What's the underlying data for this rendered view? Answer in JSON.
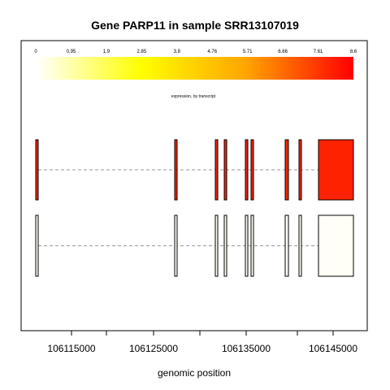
{
  "chart_data": {
    "type": "gene-structure",
    "title": "Gene PARP11 in sample SRR13107019",
    "xlabel": "genomic position",
    "xlim": [
      106111500,
      146700000
    ],
    "x_ticks": [
      106115000,
      106125000,
      106135000,
      106145000
    ],
    "x_tick_labels": [
      "106115000",
      "106125000",
      "106135000",
      "106145000"
    ],
    "legend": {
      "caption": "expression, by transcript",
      "min": 0,
      "max": 8.6,
      "tick_labels": [
        "0",
        "0.95",
        "1.9",
        "2.85",
        "3.8",
        "4.76",
        "5.71",
        "6.66",
        "7.61",
        "8.6"
      ],
      "colors": [
        "#ffffff",
        "#ffff00",
        "#ffa500",
        "#ff0000"
      ]
    },
    "exons": [
      {
        "start": 106111800,
        "end": 106112000
      },
      {
        "start": 106126500,
        "end": 106126700
      },
      {
        "start": 106130900,
        "end": 106131100
      },
      {
        "start": 106131900,
        "end": 106132100
      },
      {
        "start": 106134600,
        "end": 106134800
      },
      {
        "start": 106135200,
        "end": 106135400
      },
      {
        "start": 106139500,
        "end": 106139800
      },
      {
        "start": 106140900,
        "end": 106141100
      },
      {
        "start": 106142300,
        "end": 106146000
      }
    ],
    "transcripts": [
      {
        "expression": 8.0,
        "color": "#ff2200"
      },
      {
        "expression": 0.05,
        "color": "#fffff5"
      }
    ]
  }
}
